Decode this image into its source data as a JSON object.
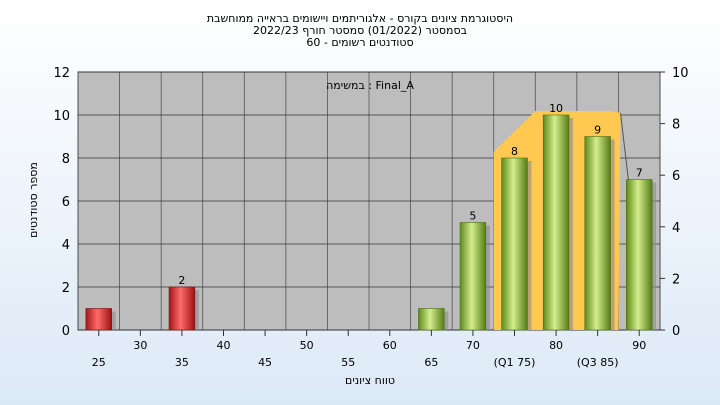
{
  "chart_data": {
    "type": "bar",
    "title_lines": [
      "היסטוגרמת ציונים בקורס - אלגוריתמים ויישומים בראייה ממוחשבת",
      "בסמסטר  (01/2022)  סמסטר חורף  2022/23",
      "סטודנטים רשומים - 60"
    ],
    "annotation": "במשימה : Final_A",
    "xlabel": "טווח ציונים",
    "ylabel": "מספר סטודנטים",
    "ylim": [
      0,
      12
    ],
    "y_ticks": [
      0,
      2,
      4,
      6,
      8,
      10,
      12
    ],
    "y2lim": [
      0,
      10
    ],
    "y2_ticks": [
      0,
      2,
      4,
      6,
      8,
      10
    ],
    "x_ticks": [
      "25",
      "30",
      "35",
      "40",
      "45",
      "50",
      "55",
      "60",
      "65",
      "70",
      "(Q1 75)",
      "80",
      "(Q3 85)",
      "90"
    ],
    "bars": [
      {
        "category": "25",
        "value": 1,
        "color": "red",
        "label": ""
      },
      {
        "category": "35",
        "value": 2,
        "color": "red",
        "label": "2"
      },
      {
        "category": "65",
        "value": 1,
        "color": "green",
        "label": ""
      },
      {
        "category": "70",
        "value": 5,
        "color": "green",
        "label": "5"
      },
      {
        "category": "(Q1 75)",
        "value": 8,
        "color": "green",
        "label": "8"
      },
      {
        "category": "80",
        "value": 10,
        "color": "green",
        "label": "10"
      },
      {
        "category": "(Q3 85)",
        "value": 9,
        "color": "green",
        "label": "9"
      },
      {
        "category": "90",
        "value": 7,
        "color": "green",
        "label": "7"
      }
    ],
    "quartile_band": {
      "from": "(Q1 75)",
      "to": "(Q3 85)",
      "color": "#ffc850"
    },
    "grid": true,
    "colors": {
      "plot_bg": "#bdbdbd",
      "red_bar": "#d92a2a",
      "green_bar": "#8fb83a",
      "band": "#ffc850"
    }
  }
}
